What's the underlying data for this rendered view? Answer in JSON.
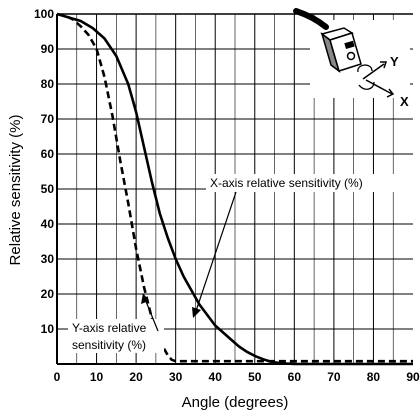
{
  "chart_data": {
    "type": "line",
    "xlabel": "Angle (degrees)",
    "ylabel": "Relative sensitivity (%)",
    "xlim": [
      0,
      90
    ],
    "ylim": [
      0,
      100
    ],
    "x_ticks": [
      "0",
      "10",
      "20",
      "30",
      "40",
      "50",
      "60",
      "70",
      "80",
      "90"
    ],
    "y_ticks": [
      "10",
      "20",
      "30",
      "40",
      "50",
      "60",
      "70",
      "80",
      "90",
      "100"
    ],
    "grid": true,
    "series": [
      {
        "name": "X-axis relative sensitivity (%)",
        "style": "solid",
        "x": [
          0,
          3,
          6,
          9,
          12,
          15,
          18,
          20,
          22,
          24,
          26,
          28,
          30,
          32,
          34,
          36,
          38,
          40,
          42,
          44,
          46,
          48,
          50,
          52,
          54,
          56,
          58,
          60,
          70,
          80,
          90
        ],
        "y": [
          100,
          99,
          98,
          96,
          93,
          88,
          80,
          72,
          62,
          52,
          43,
          36,
          30,
          25,
          21,
          17,
          14,
          11,
          9,
          7,
          5,
          3.5,
          2.3,
          1.4,
          0.7,
          0.3,
          0.1,
          0,
          0,
          0,
          0
        ]
      },
      {
        "name": "Y-axis relative sensitivity (%)",
        "style": "dashed",
        "x": [
          0,
          2,
          4,
          6,
          8,
          10,
          12,
          14,
          16,
          18,
          20,
          22,
          24,
          26,
          27,
          28,
          29,
          30,
          32,
          40,
          50,
          60,
          70,
          80,
          90
        ],
        "y": [
          100,
          99.5,
          98.5,
          96.5,
          94,
          90,
          82,
          71,
          58,
          46,
          33,
          22,
          13,
          7,
          4.5,
          2.5,
          1.2,
          0.8,
          0.8,
          0.8,
          0.8,
          0.8,
          0.8,
          0.8,
          0.8
        ]
      }
    ],
    "annotations": [
      {
        "text": "X-axis relative sensitivity (%)",
        "target_series": 0,
        "x": 25,
        "y": 33
      },
      {
        "lines": [
          "Y-axis relative",
          "sensitivity (%)"
        ],
        "target_series": 1,
        "x": 20,
        "y": 19
      }
    ]
  },
  "illustration": {
    "icon": "photoelectric-sensor-icon",
    "y_label": "Y",
    "x_label": "X"
  }
}
